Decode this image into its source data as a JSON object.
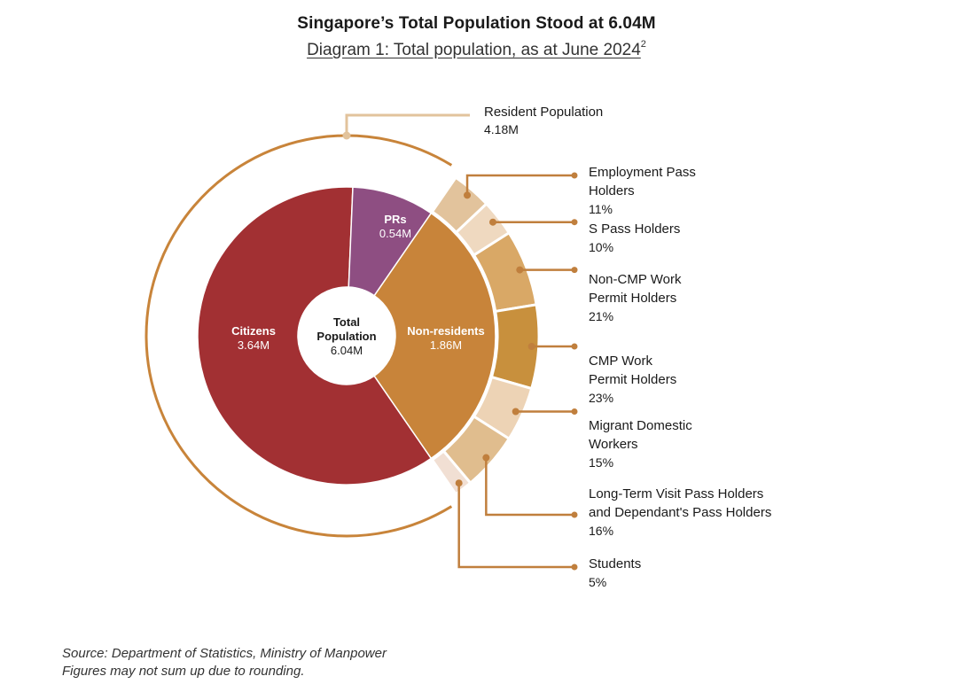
{
  "title": "Singapore’s Total Population Stood at 6.04M",
  "subtitle": "Diagram 1: Total population, as at June 2024",
  "subtitle_sup": "2",
  "source_note": "Source: Department of Statistics, Ministry of Manpower",
  "rounding_note": "Figures may not sum up due to rounding.",
  "chart_data": {
    "type": "pie",
    "variant": "sunburst donut",
    "center_label": {
      "line1": "Total",
      "line2": "Population",
      "value": "6.04M",
      "total": 6.04
    },
    "outer_ring": {
      "label": "Resident Population",
      "value_text": "4.18M",
      "value": 4.18
    },
    "inner": [
      {
        "name": "Citizens",
        "value": 3.64,
        "value_text": "3.64M",
        "color": "#A23033"
      },
      {
        "name": "PRs",
        "value": 0.54,
        "value_text": "0.54M",
        "color": "#8E4E82"
      },
      {
        "name": "Non-residents",
        "value": 1.86,
        "value_text": "1.86M",
        "color": "#C8843A"
      }
    ],
    "non_resident_breakdown": [
      {
        "lines": [
          "Employment Pass",
          "Holders"
        ],
        "pct_text": "11%",
        "pct": 11,
        "color": "#E2C39C"
      },
      {
        "lines": [
          "S Pass Holders"
        ],
        "pct_text": "10%",
        "pct": 10,
        "color": "#EFD9C0"
      },
      {
        "lines": [
          "Non-CMP Work",
          "Permit Holders"
        ],
        "pct_text": "21%",
        "pct": 21,
        "color": "#D9A866"
      },
      {
        "lines": [
          "CMP Work",
          "Permit Holders"
        ],
        "pct_text": "23%",
        "pct": 23,
        "color": "#C8903D"
      },
      {
        "lines": [
          "Migrant Domestic",
          "Workers"
        ],
        "pct_text": "15%",
        "pct": 15,
        "color": "#EDD3B5"
      },
      {
        "lines": [
          "Long-Term Visit Pass Holders",
          "and Dependant's Pass Holders"
        ],
        "pct_text": "16%",
        "pct": 16,
        "color": "#E0BD8E"
      },
      {
        "lines": [
          "Students"
        ],
        "pct_text": "5%",
        "pct": 5,
        "color": "#F1DFD3"
      }
    ],
    "colors": {
      "ring": "#C8843A",
      "leader": "#C07F3D",
      "resident_leader": "#E2C39C"
    }
  }
}
